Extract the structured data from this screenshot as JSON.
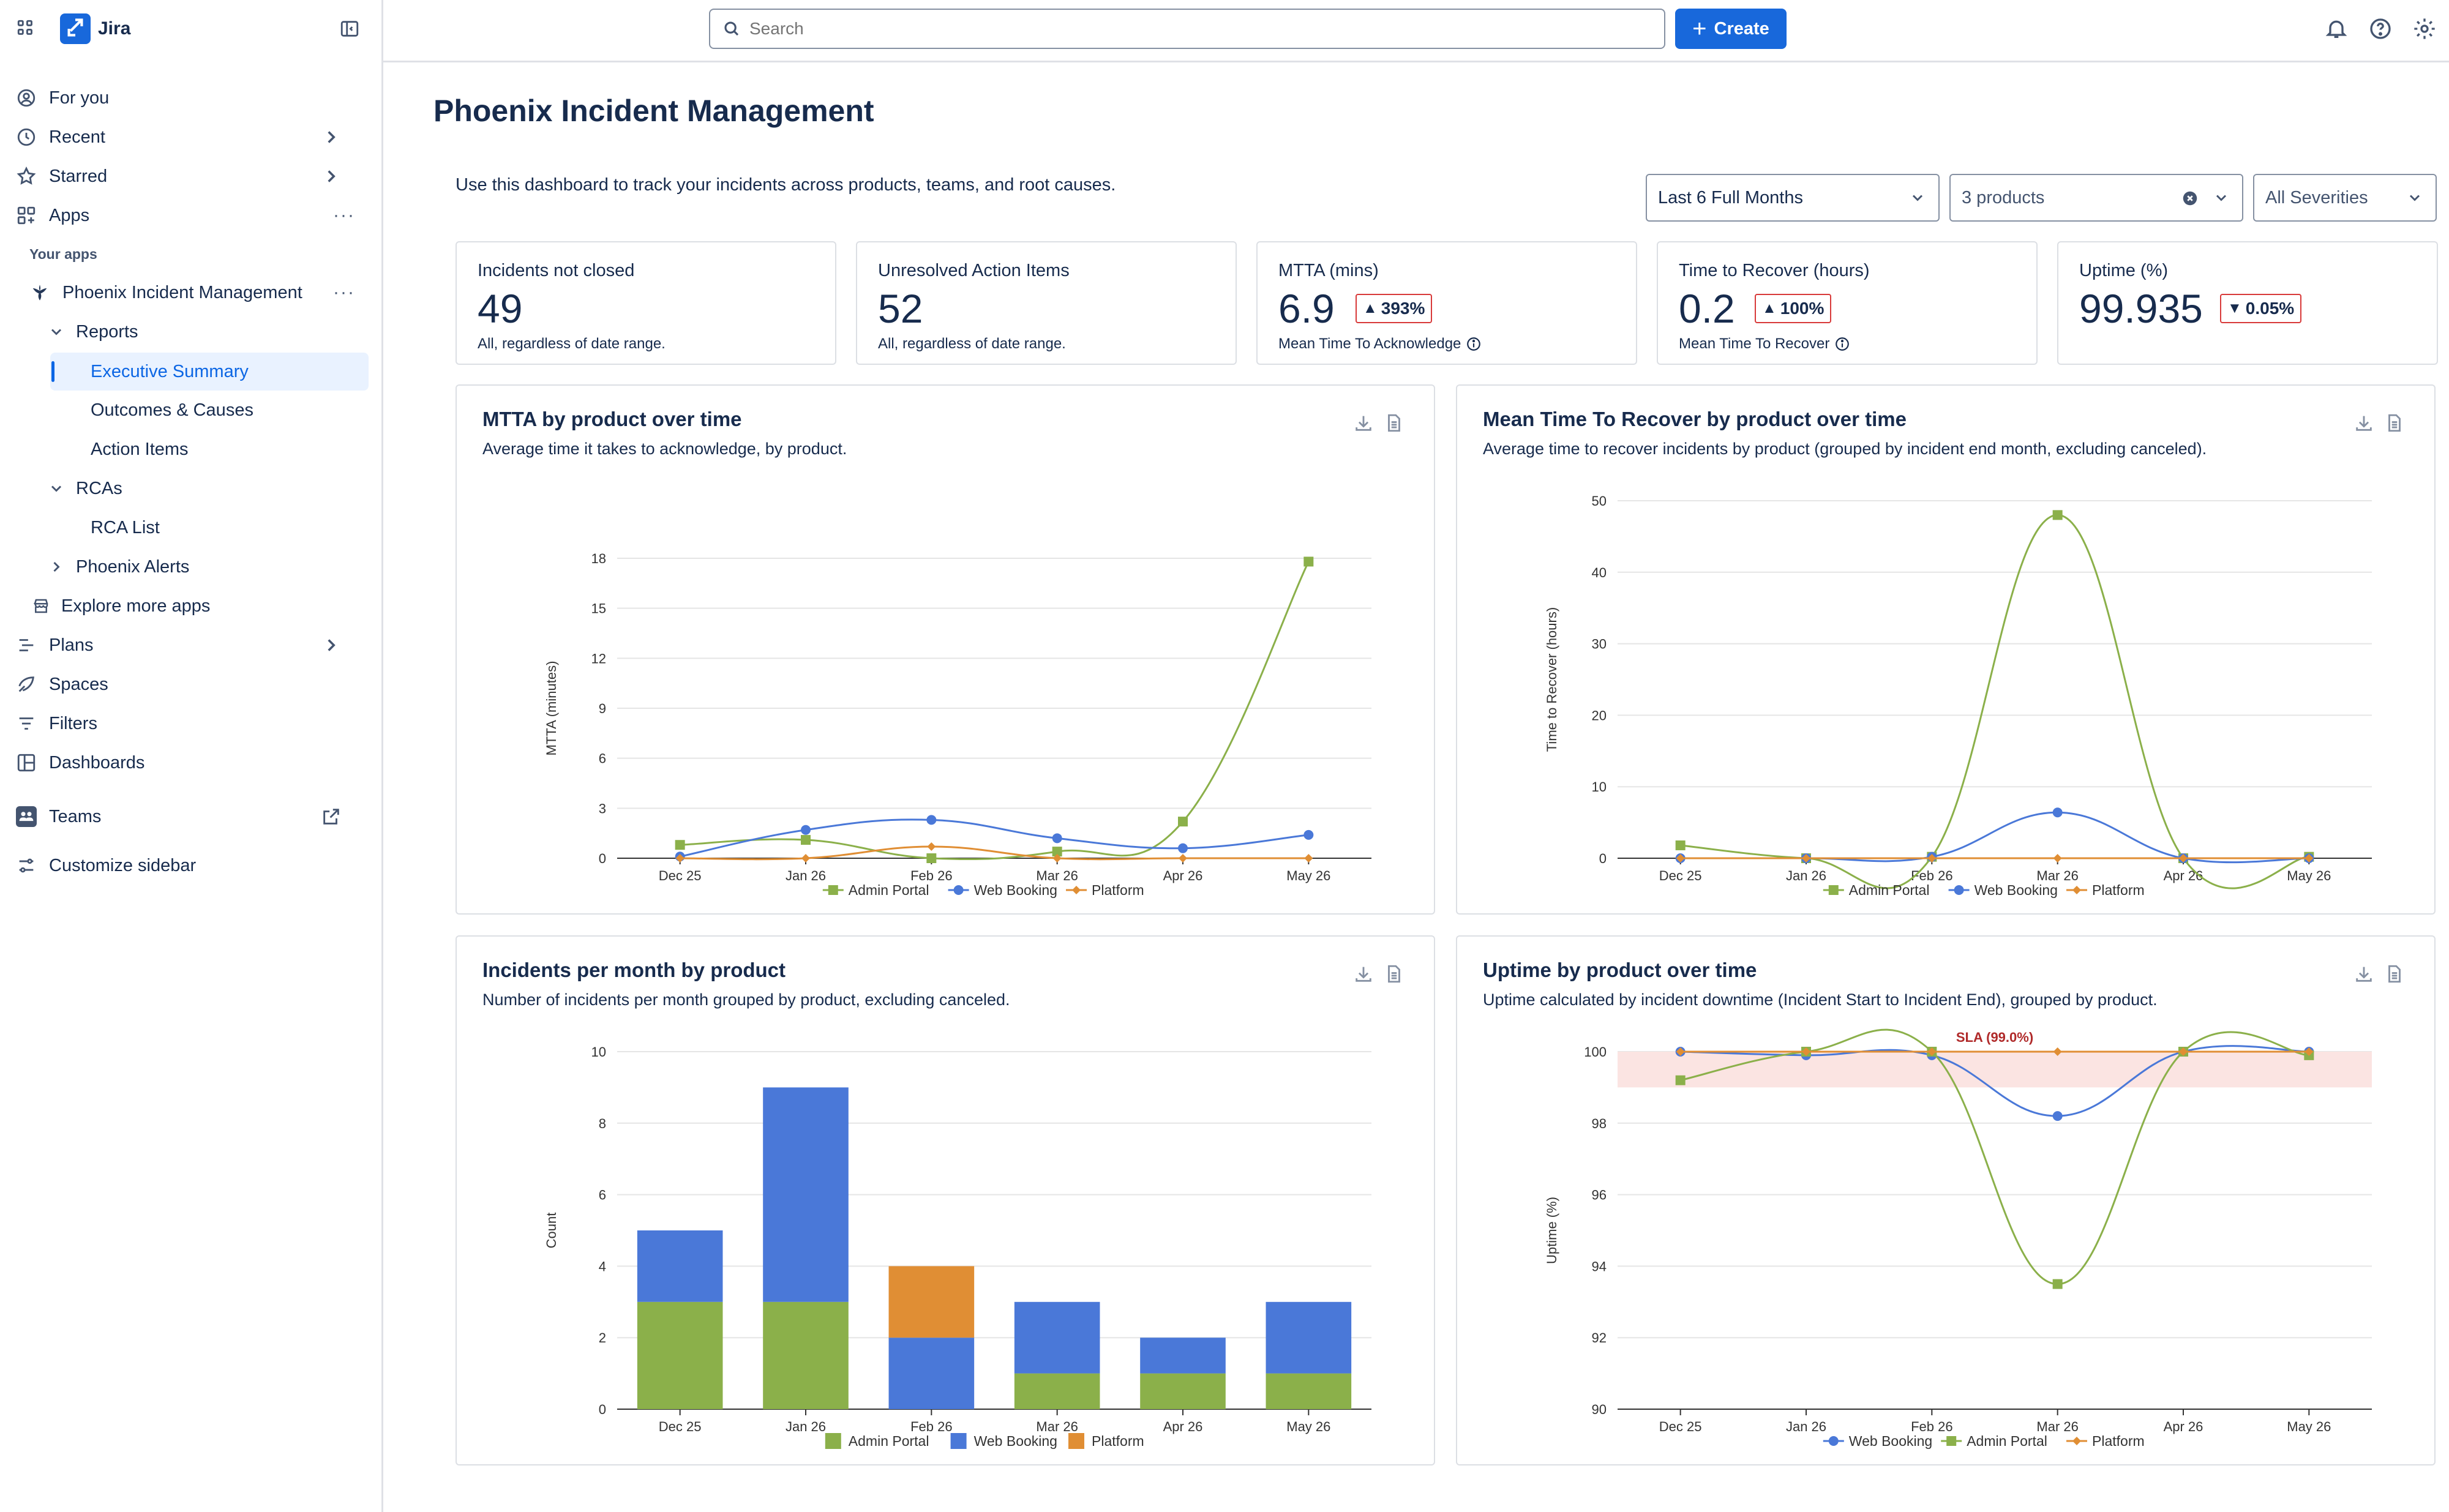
{
  "app": {
    "name": "Jira"
  },
  "sidebar": {
    "items": [
      {
        "label": "For you"
      },
      {
        "label": "Recent"
      },
      {
        "label": "Starred"
      },
      {
        "label": "Apps"
      },
      {
        "label": "Phoenix Incident Management"
      },
      {
        "label": "Reports"
      },
      {
        "label": "Executive Summary"
      },
      {
        "label": "Outcomes & Causes"
      },
      {
        "label": "Action Items"
      },
      {
        "label": "RCAs"
      },
      {
        "label": "RCA List"
      },
      {
        "label": "Phoenix Alerts"
      },
      {
        "label": "Explore more apps"
      },
      {
        "label": "Plans"
      },
      {
        "label": "Spaces"
      },
      {
        "label": "Filters"
      },
      {
        "label": "Dashboards"
      },
      {
        "label": "Teams"
      },
      {
        "label": "Customize sidebar"
      }
    ],
    "section_label": "Your apps",
    "active_item": "Executive Summary"
  },
  "topbar": {
    "search_placeholder": "Search",
    "create_label": "Create"
  },
  "page": {
    "title": "Phoenix Incident Management",
    "description": "Use this dashboard to track your incidents across products, teams, and root causes.",
    "filters": {
      "date_range": "Last 6 Full Months",
      "products": "3 products",
      "severities": "All Severities"
    }
  },
  "kpis": [
    {
      "title": "Incidents not closed",
      "value": "49",
      "footer": "All, regardless of date range."
    },
    {
      "title": "Unresolved Action Items",
      "value": "52",
      "footer": "All, regardless of date range."
    },
    {
      "title": "MTTA (mins)",
      "value": "6.9",
      "delta": "393%",
      "delta_direction": "up",
      "footer": "Mean Time To Acknowledge"
    },
    {
      "title": "Time to Recover (hours)",
      "value": "0.2",
      "delta": "100%",
      "delta_direction": "up",
      "footer": "Mean Time To Recover"
    },
    {
      "title": "Uptime (%)",
      "value": "99.935",
      "delta": "0.05%",
      "delta_direction": "down"
    }
  ],
  "colors": {
    "admin_portal": "#8bb04a",
    "web_booking": "#4a78d8",
    "platform": "#e08e34",
    "sla_band": "#fbe4e2",
    "sla_label": "#b02a2a",
    "accent": "#1868db"
  },
  "chart_data": [
    {
      "type": "line",
      "title": "MTTA by product over time",
      "subtitle": "Average time it takes to acknowledge, by product.",
      "ylabel": "MTTA (minutes)",
      "xlabel": "",
      "categories": [
        "Dec 25",
        "Jan 26",
        "Feb 26",
        "Mar 26",
        "Apr 26",
        "May 26"
      ],
      "ylim": [
        0,
        18
      ],
      "yticks": [
        0,
        3,
        6,
        9,
        12,
        15,
        18
      ],
      "legend_position": "bottom",
      "series": [
        {
          "name": "Admin Portal",
          "values": [
            0.8,
            1.1,
            0.0,
            0.4,
            2.2,
            17.8
          ],
          "marker": "square"
        },
        {
          "name": "Web Booking",
          "values": [
            0.1,
            1.7,
            2.3,
            1.2,
            0.6,
            1.4
          ],
          "marker": "circle"
        },
        {
          "name": "Platform",
          "values": [
            0.0,
            0.0,
            0.7,
            0.0,
            0.0,
            0.0
          ],
          "marker": "diamond"
        }
      ]
    },
    {
      "type": "line",
      "title": "Mean Time To Recover by product over time",
      "subtitle": "Average time to recover incidents by product (grouped by incident end month, excluding canceled).",
      "ylabel": "Time to Recover (hours)",
      "xlabel": "",
      "categories": [
        "Dec 25",
        "Jan 26",
        "Feb 26",
        "Mar 26",
        "Apr 26",
        "May 26"
      ],
      "ylim": [
        0,
        50
      ],
      "yticks": [
        0,
        10,
        20,
        30,
        40,
        50
      ],
      "legend_position": "bottom",
      "series": [
        {
          "name": "Admin Portal",
          "values": [
            1.8,
            0.0,
            0.2,
            48.0,
            0.0,
            0.2
          ],
          "marker": "square"
        },
        {
          "name": "Web Booking",
          "values": [
            0.0,
            0.0,
            0.2,
            6.4,
            0.0,
            0.0
          ],
          "marker": "circle"
        },
        {
          "name": "Platform",
          "values": [
            0.0,
            0.0,
            0.0,
            0.0,
            0.0,
            0.0
          ],
          "marker": "diamond"
        }
      ]
    },
    {
      "type": "bar",
      "stacked": true,
      "title": "Incidents per month by product",
      "subtitle": "Number of incidents per month grouped by product, excluding canceled.",
      "ylabel": "Count",
      "xlabel": "",
      "categories": [
        "Dec 25",
        "Jan 26",
        "Feb 26",
        "Mar 26",
        "Apr 26",
        "May 26"
      ],
      "ylim": [
        0,
        10
      ],
      "yticks": [
        0,
        2,
        4,
        6,
        8,
        10
      ],
      "legend_position": "bottom",
      "series": [
        {
          "name": "Admin Portal",
          "values": [
            3,
            3,
            0,
            1,
            1,
            1
          ]
        },
        {
          "name": "Web Booking",
          "values": [
            2,
            6,
            2,
            2,
            1,
            2
          ]
        },
        {
          "name": "Platform",
          "values": [
            0,
            0,
            2,
            0,
            0,
            0
          ]
        }
      ]
    },
    {
      "type": "line",
      "title": "Uptime by product over time",
      "subtitle": "Uptime calculated by incident downtime (Incident Start to Incident End), grouped by product.",
      "ylabel": "Uptime (%)",
      "xlabel": "",
      "categories": [
        "Dec 25",
        "Jan 26",
        "Feb 26",
        "Mar 26",
        "Apr 26",
        "May 26"
      ],
      "ylim": [
        90,
        100
      ],
      "yticks": [
        90,
        92,
        94,
        96,
        98,
        100
      ],
      "legend_position": "bottom",
      "annotation": {
        "label": "SLA (99.0%)",
        "band": [
          99.0,
          100
        ]
      },
      "series": [
        {
          "name": "Web Booking",
          "values": [
            100,
            99.9,
            99.9,
            98.2,
            100,
            100
          ],
          "marker": "circle"
        },
        {
          "name": "Admin Portal",
          "values": [
            99.2,
            100,
            100,
            93.5,
            100,
            99.9
          ],
          "marker": "square"
        },
        {
          "name": "Platform",
          "values": [
            100,
            100,
            100,
            100,
            100,
            100
          ],
          "marker": "diamond"
        }
      ]
    }
  ]
}
